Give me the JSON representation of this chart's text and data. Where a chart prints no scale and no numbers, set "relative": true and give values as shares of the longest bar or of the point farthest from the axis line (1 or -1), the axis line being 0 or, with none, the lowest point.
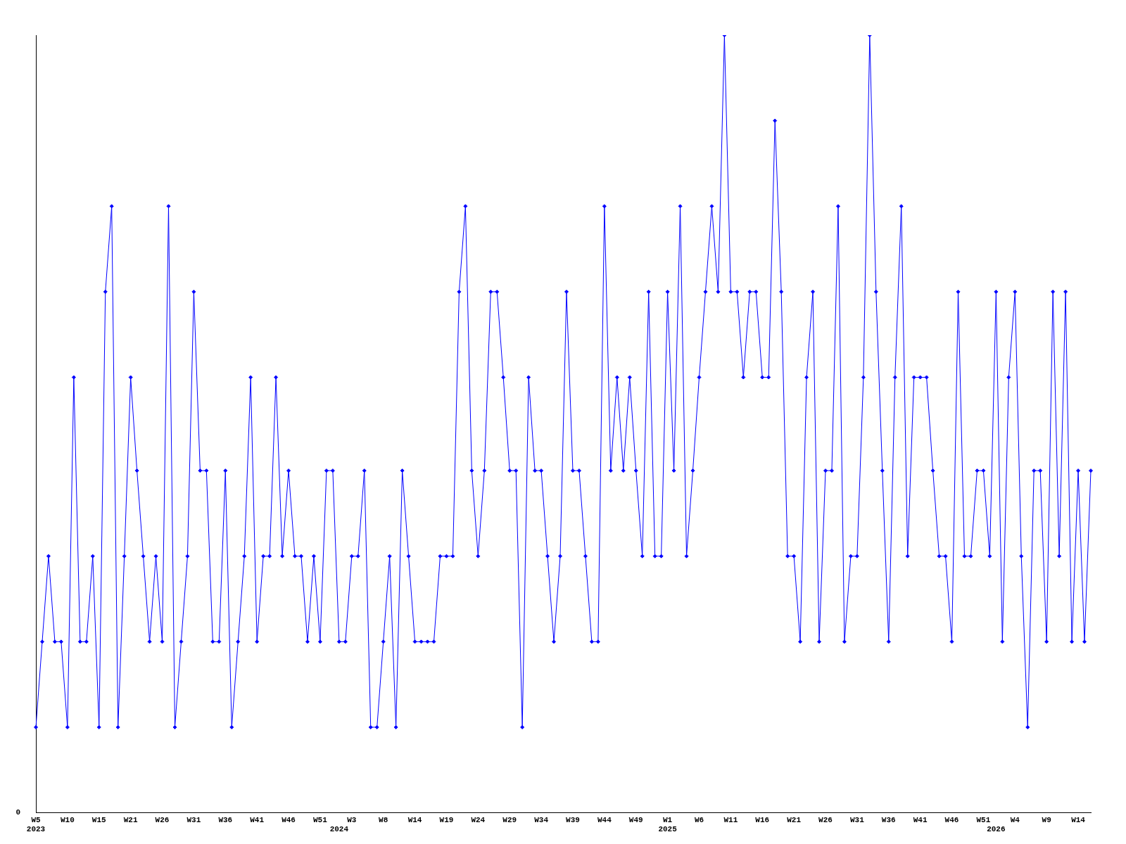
{
  "chart_data": {
    "type": "line",
    "relative": true,
    "color": "#0000ff",
    "marker": "diamond",
    "grid": false,
    "annotations": [
      "0"
    ],
    "categories": [
      "W5\n2023",
      null,
      null,
      null,
      null,
      "W10",
      null,
      null,
      null,
      null,
      "W15",
      null,
      null,
      null,
      null,
      "W21",
      null,
      null,
      null,
      null,
      "W26",
      null,
      null,
      null,
      null,
      "W31",
      null,
      null,
      null,
      null,
      "W36",
      null,
      null,
      null,
      null,
      "W41",
      null,
      null,
      null,
      null,
      "W46",
      null,
      null,
      null,
      null,
      "W51",
      null,
      null,
      "\n2024",
      null,
      "W3",
      null,
      null,
      null,
      null,
      "W8",
      null,
      null,
      null,
      null,
      "W14",
      null,
      null,
      null,
      null,
      "W19",
      null,
      null,
      null,
      null,
      "W24",
      null,
      null,
      null,
      null,
      "W29",
      null,
      null,
      null,
      null,
      "W34",
      null,
      null,
      null,
      null,
      "W39",
      null,
      null,
      null,
      null,
      "W44",
      null,
      null,
      null,
      null,
      "W49",
      null,
      null,
      null,
      null,
      "W1\n2025",
      null,
      null,
      null,
      null,
      "W6",
      null,
      null,
      null,
      null,
      "W11",
      null,
      null,
      null,
      null,
      "W16",
      null,
      null,
      null,
      null,
      "W21",
      null,
      null,
      null,
      null,
      "W26",
      null,
      null,
      null,
      null,
      "W31",
      null,
      null,
      null,
      null,
      "W36",
      null,
      null,
      null,
      null,
      "W41",
      null,
      null,
      null,
      null,
      "W46",
      null,
      null,
      null,
      null,
      "W51",
      null,
      "\n2026",
      null,
      null,
      "W4",
      null,
      null,
      null,
      null,
      "W9",
      null,
      null,
      null,
      null,
      "W14",
      null,
      null
    ],
    "values": [
      0.11,
      0.22,
      0.33,
      0.22,
      0.22,
      0.11,
      0.56,
      0.22,
      0.22,
      0.33,
      0.11,
      0.67,
      0.78,
      0.11,
      0.33,
      0.56,
      0.44,
      0.33,
      0.22,
      0.33,
      0.22,
      0.78,
      0.11,
      0.22,
      0.33,
      0.67,
      0.44,
      0.44,
      0.22,
      0.22,
      0.44,
      0.11,
      0.22,
      0.33,
      0.56,
      0.22,
      0.33,
      0.33,
      0.56,
      0.33,
      0.44,
      0.33,
      0.33,
      0.22,
      0.33,
      0.22,
      0.44,
      0.44,
      0.22,
      0.22,
      0.33,
      0.33,
      0.44,
      0.11,
      0.11,
      0.22,
      0.33,
      0.11,
      0.44,
      0.33,
      0.22,
      0.22,
      0.22,
      0.22,
      0.33,
      0.33,
      0.33,
      0.67,
      0.78,
      0.44,
      0.33,
      0.44,
      0.67,
      0.67,
      0.56,
      0.44,
      0.44,
      0.11,
      0.56,
      0.44,
      0.44,
      0.33,
      0.22,
      0.33,
      0.67,
      0.44,
      0.44,
      0.33,
      0.22,
      0.22,
      0.78,
      0.44,
      0.56,
      0.44,
      0.56,
      0.44,
      0.33,
      0.67,
      0.33,
      0.33,
      0.67,
      0.44,
      0.78,
      0.33,
      0.44,
      0.56,
      0.67,
      0.78,
      0.67,
      1,
      0.67,
      0.67,
      0.56,
      0.67,
      0.67,
      0.56,
      0.56,
      0.89,
      0.67,
      0.33,
      0.33,
      0.22,
      0.56,
      0.67,
      0.22,
      0.44,
      0.44,
      0.78,
      0.22,
      0.33,
      0.33,
      0.56,
      1,
      0.67,
      0.44,
      0.22,
      0.56,
      0.78,
      0.33,
      0.56,
      0.56,
      0.56,
      0.44,
      0.33,
      0.33,
      0.22,
      0.67,
      0.33,
      0.33,
      0.44,
      0.44,
      0.33,
      0.67,
      0.22,
      0.56,
      0.67,
      0.33,
      0.11,
      0.44,
      0.44,
      0.22,
      0.67,
      0.33,
      0.67,
      0.22,
      0.44,
      0.22,
      0.44
    ]
  }
}
